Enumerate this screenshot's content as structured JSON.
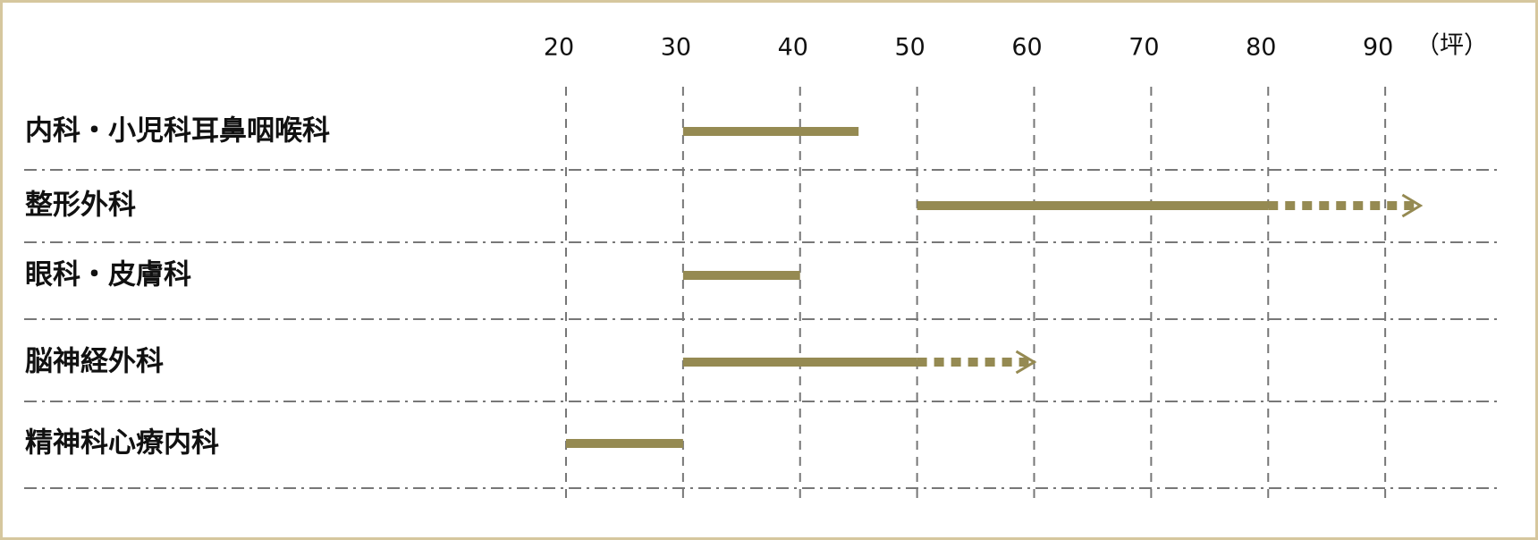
{
  "chart_data": {
    "type": "range",
    "unit_label": "（坪）",
    "categories": [
      "内科・小児科耳鼻咽喉科",
      "整形外科",
      "眼科・皮膚科",
      "脳神経外科",
      "精神科心療内科"
    ],
    "starts": [
      30,
      50,
      30,
      30,
      20
    ],
    "ends": [
      45,
      80,
      40,
      50,
      30
    ],
    "extends": [
      null,
      93,
      null,
      60,
      null
    ],
    "color": "#958a52",
    "xlim": [
      20,
      100
    ],
    "xticks": [
      20,
      30,
      40,
      50,
      60,
      70,
      80,
      90
    ],
    "grid": true
  }
}
